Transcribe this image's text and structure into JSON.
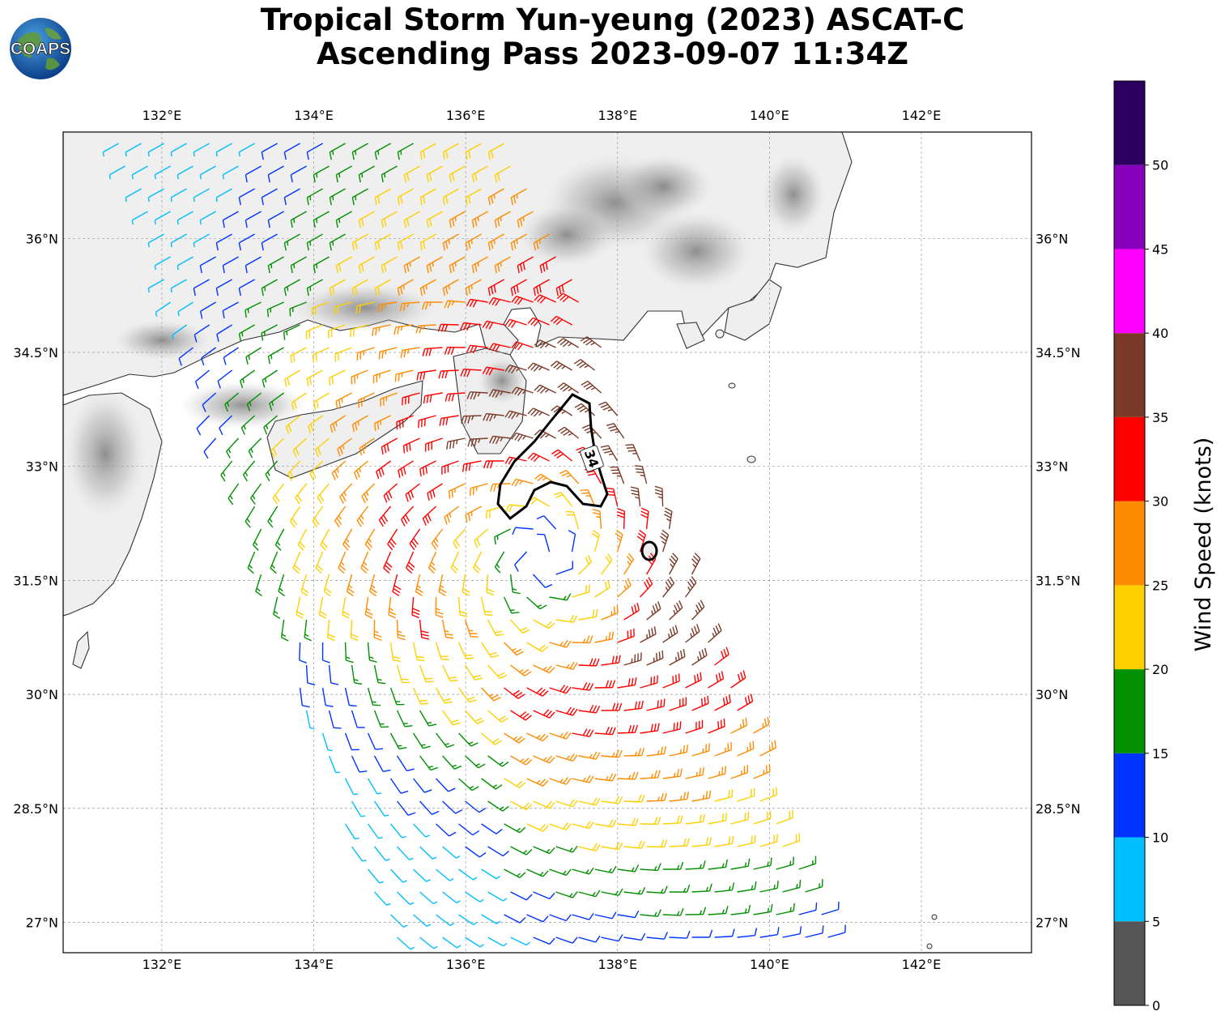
{
  "title": {
    "line1": "Tropical Storm Yun-yeung (2023) ASCAT-C",
    "line2": "Ascending Pass 2023-09-07 11:34Z"
  },
  "logo": {
    "text": "COAPS",
    "icon": "globe-icon"
  },
  "map": {
    "lon_range": [
      130.7,
      143.45
    ],
    "lat_range": [
      26.6,
      37.4
    ],
    "lon_ticks": [
      "132°E",
      "134°E",
      "136°E",
      "138°E",
      "140°E",
      "142°E"
    ],
    "lat_ticks": [
      "27°N",
      "28.5°N",
      "30°N",
      "31.5°N",
      "33°N",
      "34.5°N",
      "36°N"
    ],
    "grid": true,
    "storm_center": {
      "lon": 137.0,
      "lat": 31.8
    },
    "contour_label": "34"
  },
  "colorbar": {
    "label": "Wind Speed (knots)",
    "ticks": [
      "0",
      "5",
      "10",
      "15",
      "20",
      "25",
      "30",
      "35",
      "40",
      "45",
      "50"
    ],
    "bins": [
      {
        "min": 0,
        "max": 5,
        "color": "#555555"
      },
      {
        "min": 5,
        "max": 10,
        "color": "#00bfff"
      },
      {
        "min": 10,
        "max": 15,
        "color": "#0033ff"
      },
      {
        "min": 15,
        "max": 20,
        "color": "#009000"
      },
      {
        "min": 20,
        "max": 25,
        "color": "#ffd000"
      },
      {
        "min": 25,
        "max": 30,
        "color": "#ff8c00"
      },
      {
        "min": 30,
        "max": 35,
        "color": "#ff0000"
      },
      {
        "min": 35,
        "max": 40,
        "color": "#7b3a28"
      },
      {
        "min": 40,
        "max": 45,
        "color": "#ff00ff"
      },
      {
        "min": 45,
        "max": 50,
        "color": "#8800bb"
      },
      {
        "min": 50,
        "max": 55,
        "color": "#2b0060"
      }
    ]
  }
}
